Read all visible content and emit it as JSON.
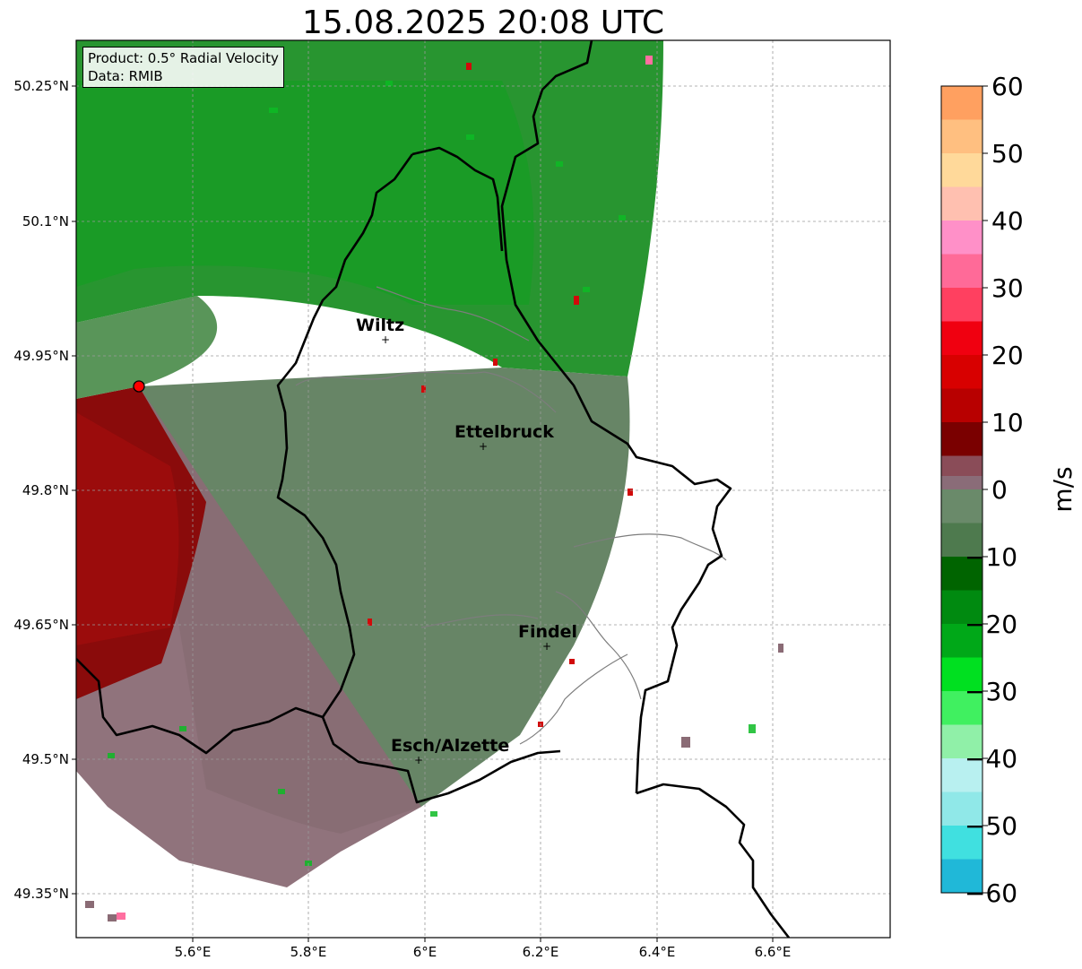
{
  "title": "15.08.2025 20:08 UTC",
  "info": {
    "product": "Product: 0.5° Radial Velocity",
    "source": "Data: RMIB"
  },
  "map": {
    "lon_range": [
      5.43,
      6.8
    ],
    "lat_range": [
      49.3,
      50.3
    ],
    "lon_ticks": [
      "5.6°E",
      "5.8°E",
      "6°E",
      "6.2°E",
      "6.4°E",
      "6.6°E"
    ],
    "lat_ticks": [
      "50.25°N",
      "50.1°N",
      "49.95°N",
      "49.8°N",
      "49.65°N",
      "49.5°N",
      "49.35°N"
    ],
    "radar_site_color": "#ff0000",
    "cities": [
      {
        "name": "Wiltz"
      },
      {
        "name": "Ettelbruck"
      },
      {
        "name": "Findel"
      },
      {
        "name": "Esch/Alzette"
      }
    ]
  },
  "colorbar": {
    "label": "m/s",
    "tick_labels": [
      "60",
      "50",
      "40",
      "30",
      "20",
      "10",
      "0",
      "−10",
      "−20",
      "−30",
      "−40",
      "−50",
      "−60"
    ],
    "range": [
      -60,
      60
    ]
  }
}
